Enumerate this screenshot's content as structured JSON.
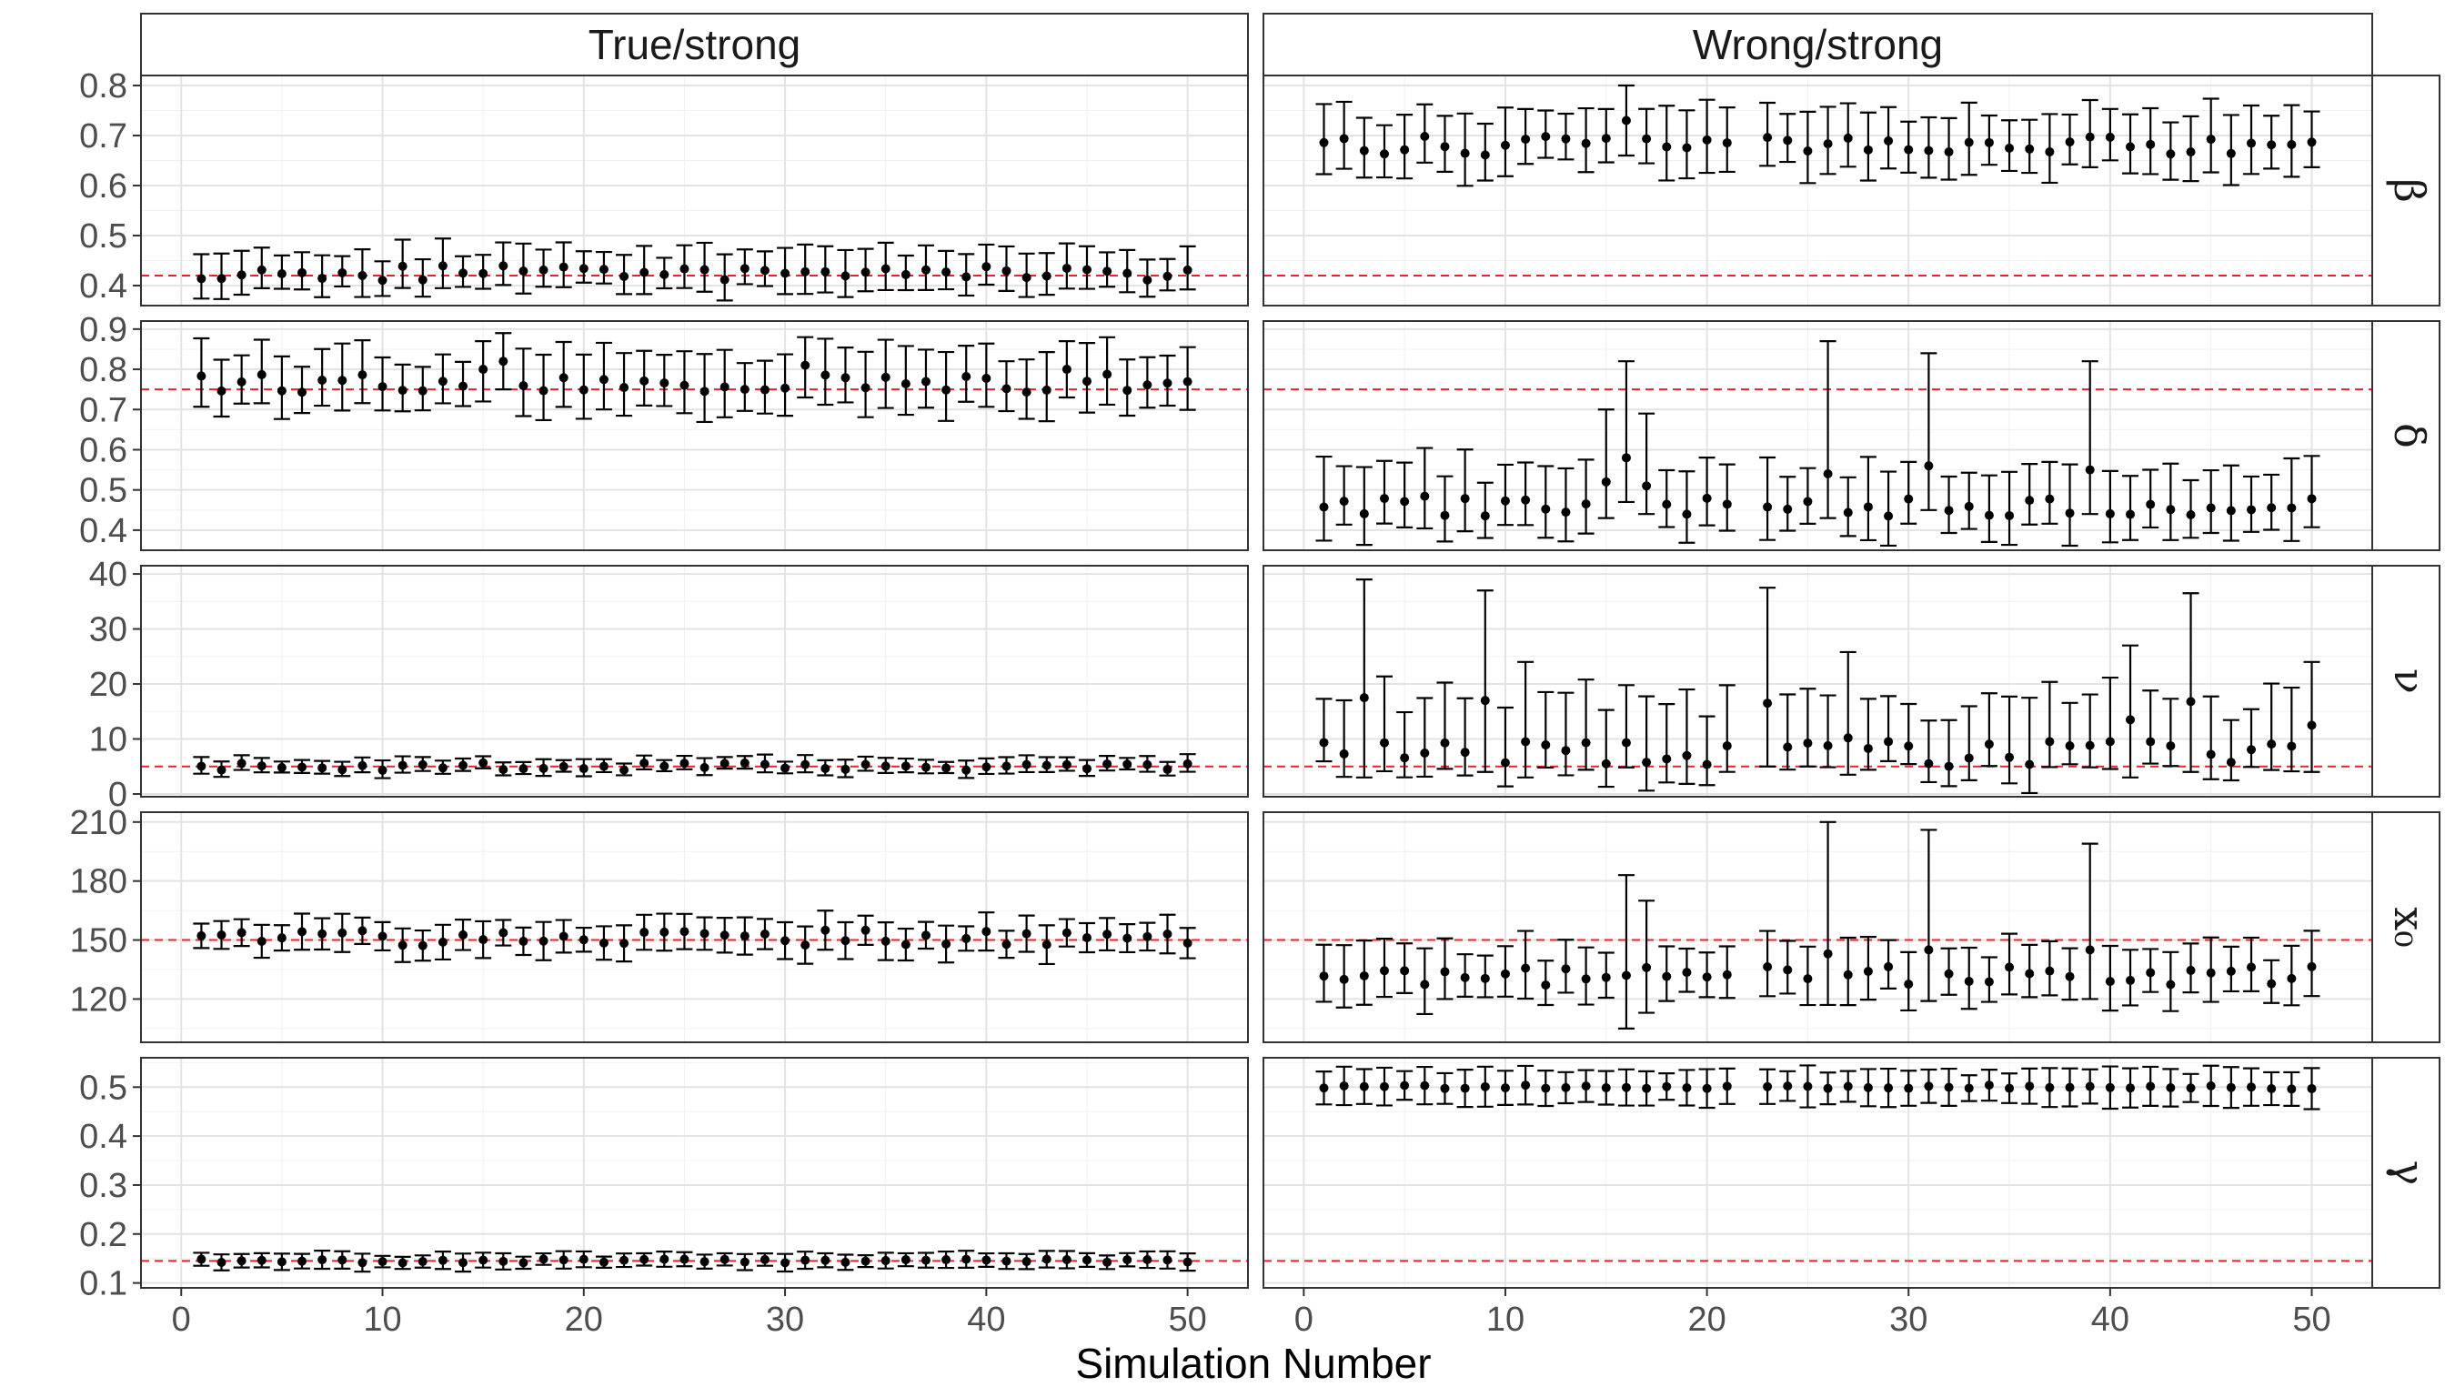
{
  "chart_data": {
    "type": "scatter",
    "subtype": "point-with-error-bars, faceted grid",
    "xlabel": "Simulation Number",
    "x_ticks": [
      "0",
      "10",
      "20",
      "30",
      "40",
      "50"
    ],
    "xlim": [
      -2,
      53
    ],
    "columns": [
      "True/strong",
      "Wrong/strong"
    ],
    "point_color": "#000000",
    "reference_line_color": "#e8222a",
    "grid": true,
    "rows": [
      {
        "label": "β",
        "ylim": [
          0.36,
          0.82
        ],
        "y_ticks": [
          "0.4",
          "0.5",
          "0.6",
          "0.7",
          "0.8"
        ],
        "y_tick_values": [
          0.4,
          0.5,
          0.6,
          0.7,
          0.8
        ],
        "true_value": 0.42,
        "panels": [
          {
            "center": 0.425,
            "spread": 0.08,
            "variation": 0.015,
            "lower_frac": 0.45,
            "upper_frac": 0.55,
            "missing": [],
            "big": {}
          },
          {
            "center": 0.68,
            "spread": 0.12,
            "variation": 0.02,
            "lower_frac": 0.45,
            "upper_frac": 0.55,
            "missing": [
              22
            ],
            "big": {
              "16": [
                0.73,
                0.66,
                0.8
              ]
            }
          }
        ]
      },
      {
        "label": "δ",
        "ylim": [
          0.35,
          0.92
        ],
        "y_ticks": [
          "0.4",
          "0.5",
          "0.6",
          "0.7",
          "0.8",
          "0.9"
        ],
        "y_tick_values": [
          0.4,
          0.5,
          0.6,
          0.7,
          0.8,
          0.9
        ],
        "true_value": 0.75,
        "panels": [
          {
            "center": 0.765,
            "spread": 0.14,
            "variation": 0.025,
            "lower_frac": 0.45,
            "upper_frac": 0.55,
            "missing": [],
            "big": {
              "15": [
                0.8,
                0.72,
                0.87
              ],
              "16": [
                0.82,
                0.75,
                0.89
              ],
              "31": [
                0.81,
                0.73,
                0.88
              ],
              "44": [
                0.8,
                0.73,
                0.87
              ]
            }
          },
          {
            "center": 0.46,
            "spread": 0.17,
            "variation": 0.025,
            "lower_frac": 0.4,
            "upper_frac": 0.6,
            "missing": [
              22
            ],
            "big": {
              "16": [
                0.58,
                0.47,
                0.82
              ],
              "26": [
                0.54,
                0.43,
                0.87
              ],
              "31": [
                0.56,
                0.45,
                0.84
              ],
              "39": [
                0.55,
                0.44,
                0.82
              ],
              "15": [
                0.52,
                0.43,
                0.7
              ],
              "17": [
                0.51,
                0.44,
                0.69
              ]
            }
          }
        ]
      },
      {
        "label": "ν",
        "ylim": [
          -0.5,
          41.5
        ],
        "y_ticks": [
          "0",
          "10",
          "20",
          "30",
          "40"
        ],
        "y_tick_values": [
          0,
          10,
          20,
          30,
          40
        ],
        "true_value": 5,
        "panels": [
          {
            "center": 5.0,
            "spread": 2.6,
            "variation": 0.7,
            "lower_frac": 0.45,
            "upper_frac": 0.55,
            "missing": [],
            "big": {}
          },
          {
            "center": 7.5,
            "spread": 14.0,
            "variation": 2.5,
            "lower_frac": 0.3,
            "upper_frac": 0.7,
            "missing": [
              22
            ],
            "big": {
              "3": [
                17.5,
                3.0,
                39.0
              ],
              "9": [
                17.0,
                4.0,
                37.0
              ],
              "23": [
                16.5,
                5.0,
                37.5
              ],
              "44": [
                16.8,
                4.0,
                36.5
              ],
              "41": [
                13.5,
                3.0,
                27.0
              ],
              "27": [
                10.2,
                3.5,
                25.8
              ],
              "11": [
                9.5,
                3.0,
                24.0
              ],
              "50": [
                12.5,
                4.0,
                24.0
              ]
            }
          }
        ]
      },
      {
        "label": "x₀",
        "ylim": [
          98,
          215
        ],
        "y_ticks": [
          "120",
          "150",
          "180",
          "210"
        ],
        "y_tick_values": [
          120,
          150,
          180,
          210
        ],
        "true_value": 150,
        "panels": [
          {
            "center": 151,
            "spread": 16,
            "variation": 4,
            "lower_frac": 0.5,
            "upper_frac": 0.5,
            "missing": [],
            "big": {}
          },
          {
            "center": 132,
            "spread": 28,
            "variation": 5,
            "lower_frac": 0.45,
            "upper_frac": 0.55,
            "missing": [
              22
            ],
            "big": {
              "16": [
                132,
                105,
                183
              ],
              "26": [
                143,
                117,
                210
              ],
              "31": [
                145,
                119,
                206
              ],
              "39": [
                145,
                120,
                199
              ],
              "17": [
                136,
                113,
                170
              ]
            }
          }
        ]
      },
      {
        "label": "γ",
        "ylim": [
          0.09,
          0.56
        ],
        "y_ticks": [
          "0.1",
          "0.2",
          "0.3",
          "0.4",
          "0.5"
        ],
        "y_tick_values": [
          0.1,
          0.2,
          0.3,
          0.4,
          0.5
        ],
        "true_value": 0.145,
        "panels": [
          {
            "center": 0.145,
            "spread": 0.03,
            "variation": 0.004,
            "lower_frac": 0.5,
            "upper_frac": 0.5,
            "missing": [],
            "big": {}
          },
          {
            "center": 0.5,
            "spread": 0.07,
            "variation": 0.004,
            "lower_frac": 0.5,
            "upper_frac": 0.5,
            "missing": [
              22
            ],
            "big": {}
          }
        ]
      }
    ]
  }
}
